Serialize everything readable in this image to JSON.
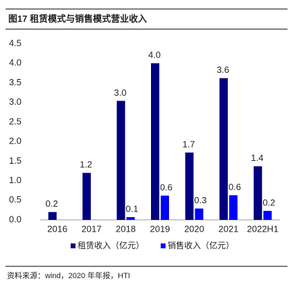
{
  "chart_data": {
    "type": "bar",
    "title": "图17 租赁模式与销售模式营业收入",
    "source": "资料来源：wind，2020 年年报，HTI",
    "categories": [
      "2016",
      "2017",
      "2018",
      "2019",
      "2020",
      "2021",
      "2022H1"
    ],
    "series": [
      {
        "name": "租赁收入（亿元）",
        "color": "#000080",
        "values": [
          0.2,
          1.2,
          3.04,
          4.0,
          1.72,
          3.62,
          1.37
        ],
        "value_labels": [
          "0.2",
          "1.2",
          "3.0",
          "4.0",
          "1.7",
          "3.6",
          "1.4"
        ]
      },
      {
        "name": "销售收入（亿元）",
        "color": "#0000ff",
        "values": [
          null,
          null,
          0.07,
          0.62,
          0.29,
          0.63,
          0.23
        ],
        "value_labels": [
          null,
          null,
          "0.1",
          "0.6",
          "0.3",
          "0.6",
          "0.2"
        ]
      }
    ],
    "ylim": [
      0,
      4.5
    ],
    "yticks": [
      {
        "value": 0,
        "label": "0.0"
      },
      0.5,
      {
        "value": 1,
        "label": "1.0"
      },
      1.5,
      {
        "value": 2,
        "label": "2.0"
      },
      2.5,
      {
        "value": 3,
        "label": "3.0"
      },
      3.5,
      {
        "value": 4,
        "label": "4.0"
      },
      4.5
    ]
  }
}
